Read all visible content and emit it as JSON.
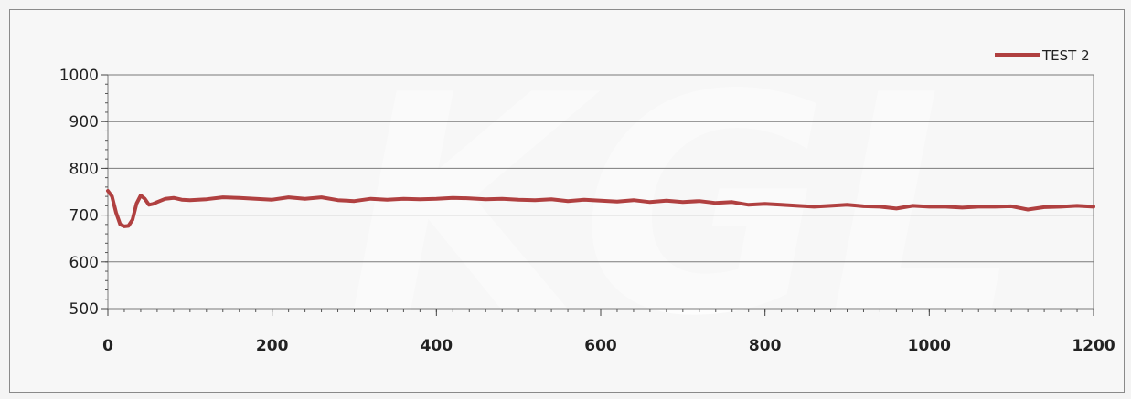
{
  "watermark": "KGL",
  "chart_data": {
    "type": "line",
    "title": "",
    "xlabel": "",
    "ylabel": "",
    "xlim": [
      0,
      1200
    ],
    "ylim": [
      500,
      1000
    ],
    "xticks": [
      0,
      200,
      400,
      600,
      800,
      1000,
      1200
    ],
    "yticks": [
      500,
      600,
      700,
      800,
      900,
      1000
    ],
    "x_tick_labels": [
      "0",
      "200",
      "400",
      "600",
      "800",
      "1000",
      "1200"
    ],
    "y_tick_labels": [
      "500",
      "600",
      "700",
      "800",
      "900",
      "1000"
    ],
    "grid": "horizontal",
    "legend_position": "top-right",
    "series": [
      {
        "name": "TEST 2",
        "color": "#b04040",
        "x": [
          0,
          5,
          10,
          15,
          20,
          25,
          30,
          35,
          40,
          45,
          50,
          55,
          60,
          70,
          80,
          90,
          100,
          120,
          140,
          160,
          180,
          200,
          220,
          240,
          260,
          280,
          300,
          320,
          340,
          360,
          380,
          400,
          420,
          440,
          460,
          480,
          500,
          520,
          540,
          560,
          580,
          600,
          620,
          640,
          660,
          680,
          700,
          720,
          740,
          760,
          780,
          800,
          820,
          840,
          860,
          880,
          900,
          920,
          940,
          960,
          980,
          1000,
          1020,
          1040,
          1060,
          1080,
          1100,
          1120,
          1140,
          1160,
          1180,
          1200
        ],
        "values": [
          752,
          740,
          705,
          680,
          676,
          677,
          690,
          725,
          742,
          735,
          722,
          724,
          728,
          735,
          737,
          733,
          732,
          734,
          738,
          737,
          735,
          733,
          738,
          735,
          738,
          732,
          730,
          735,
          733,
          735,
          734,
          735,
          737,
          736,
          734,
          735,
          733,
          732,
          734,
          730,
          733,
          731,
          729,
          732,
          728,
          731,
          728,
          730,
          726,
          728,
          722,
          724,
          722,
          720,
          718,
          720,
          722,
          719,
          718,
          714,
          720,
          718,
          718,
          716,
          718,
          718,
          719,
          712,
          717,
          718,
          720,
          718
        ]
      }
    ]
  }
}
